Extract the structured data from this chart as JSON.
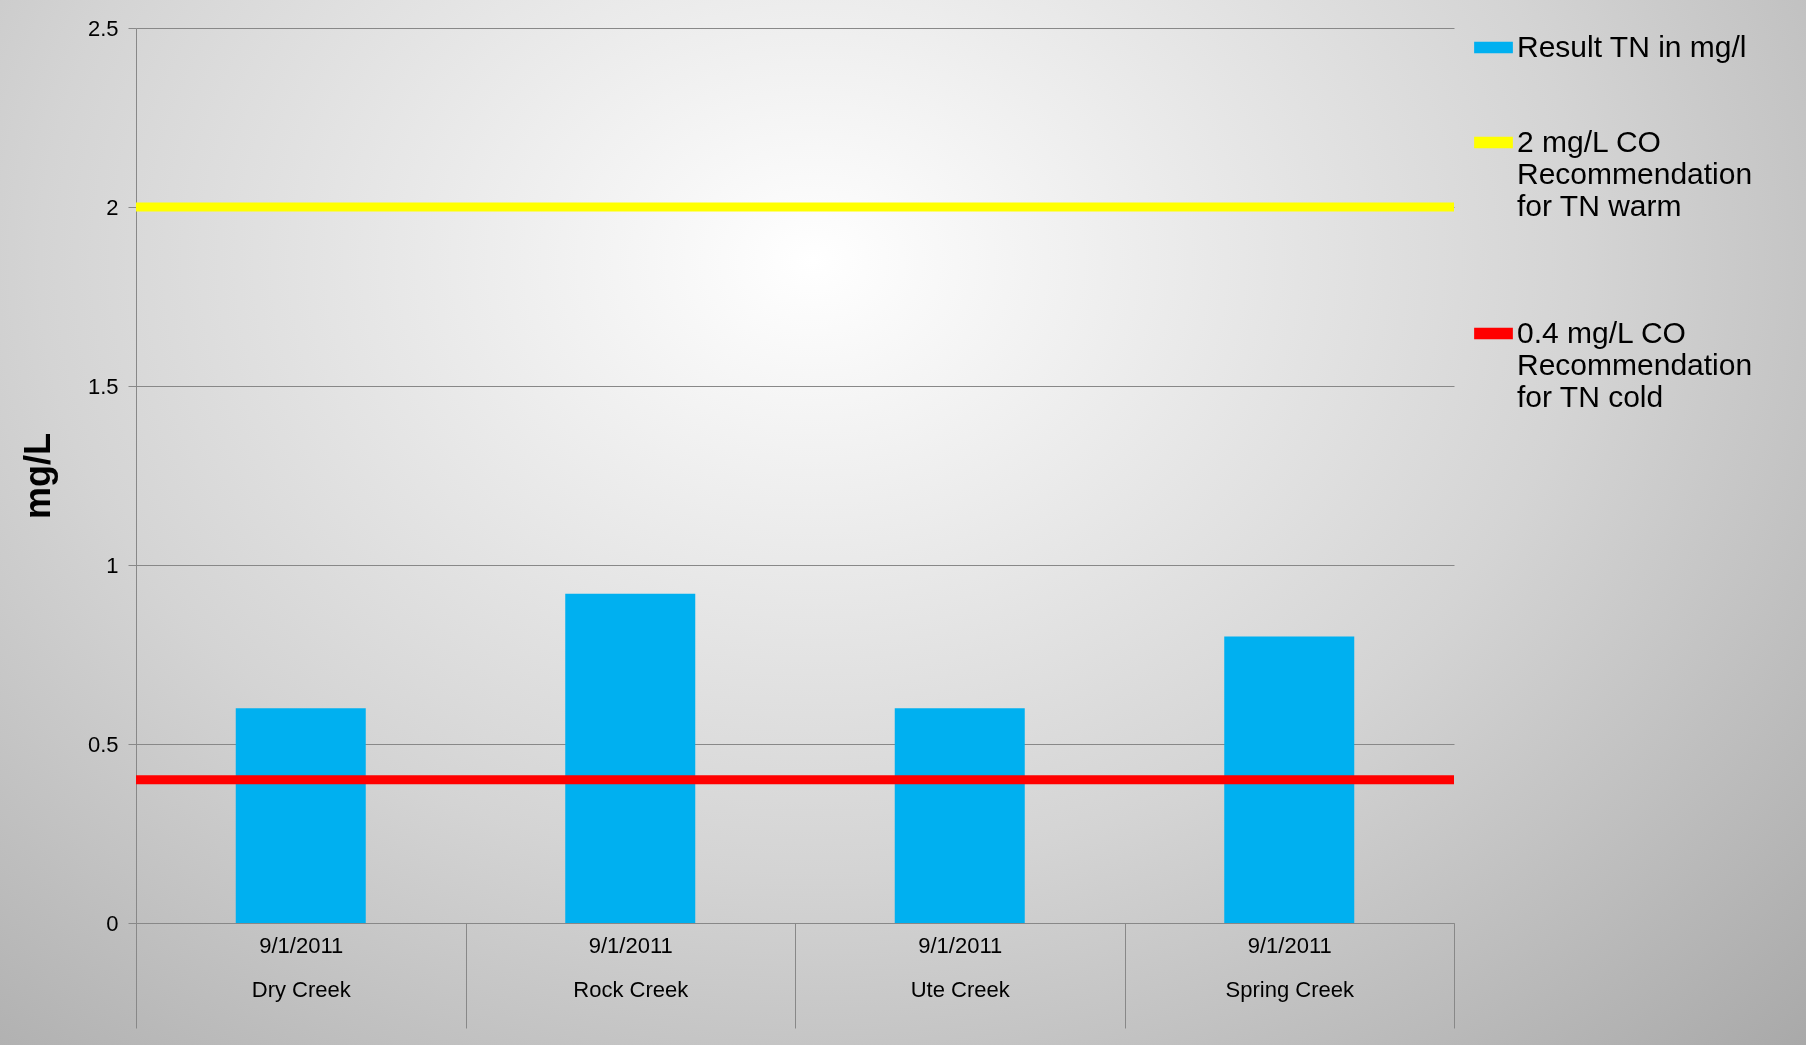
{
  "chart_data": {
    "type": "bar",
    "ylabel": "mg/L",
    "categories": [
      "9/1/2011\nDry Creek",
      "9/1/2011\nRock Creek",
      "9/1/2011\nUte Creek",
      "9/1/2011\nSpring Creek"
    ],
    "series": [
      {
        "name": "Result TN  in mg/l",
        "color": "#00b0f0",
        "values": [
          0.6,
          0.92,
          0.6,
          0.8
        ]
      }
    ],
    "ylim": [
      0,
      2.5
    ],
    "yticks": [
      0,
      0.5,
      1,
      1.5,
      2,
      2.5
    ],
    "grid": "y",
    "legend": "top right",
    "ref_lines": [
      {
        "axis": "y",
        "value": 2,
        "label": "2 mg/L CO Recommendation for TN warm",
        "color": "#ffff00"
      },
      {
        "axis": "y",
        "value": 0.4,
        "label": "0.4 mg/L CO Recommendation for TN cold",
        "color": "#ff0000"
      }
    ]
  }
}
